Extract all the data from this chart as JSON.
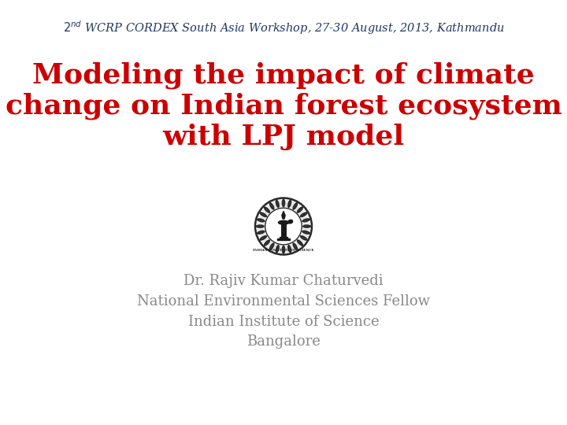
{
  "background_color": "#ffffff",
  "header_color": "#1F3864",
  "header_fontsize": 10.5,
  "title_line1": "Modeling the impact of climate",
  "title_line2": "change on Indian forest ecosystem",
  "title_line3": "with LPJ model",
  "title_color": "#CC0000",
  "title_fontsize": 26,
  "title_fontweight": "bold",
  "author_lines": [
    "Dr. Rajiv Kumar Chaturvedi",
    "National Environmental Sciences Fellow",
    "Indian Institute of Science",
    "Bangalore"
  ],
  "author_color": "#888888",
  "author_fontsize": 13
}
